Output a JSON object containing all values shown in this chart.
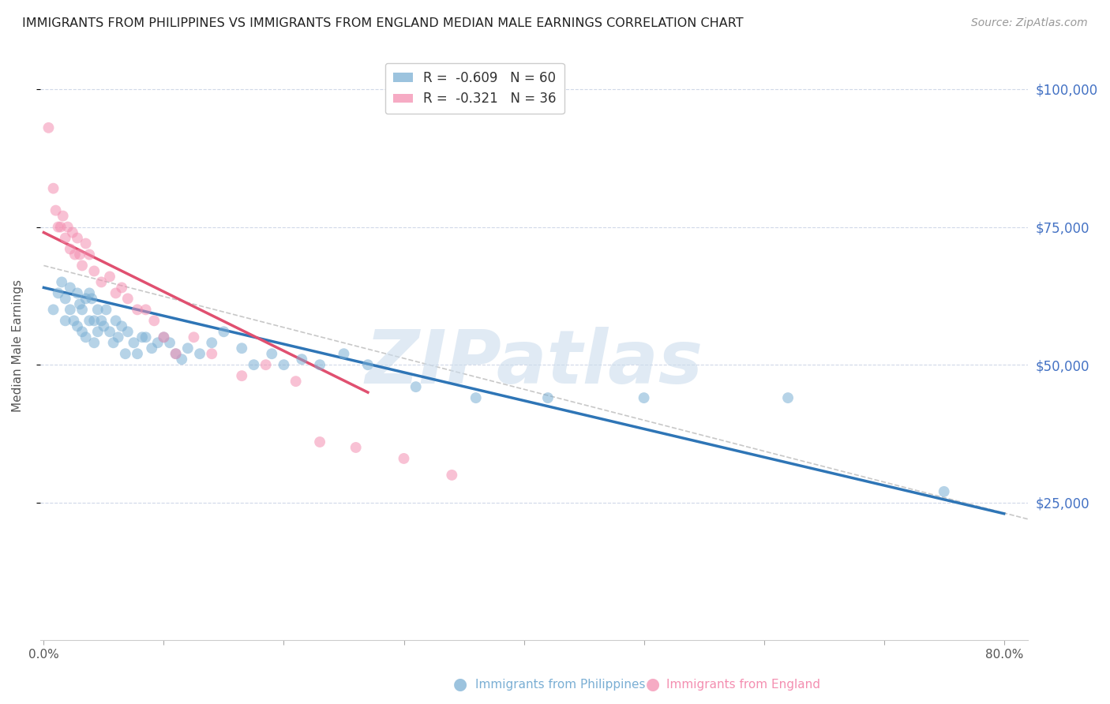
{
  "title": "IMMIGRANTS FROM PHILIPPINES VS IMMIGRANTS FROM ENGLAND MEDIAN MALE EARNINGS CORRELATION CHART",
  "source": "Source: ZipAtlas.com",
  "ylabel": "Median Male Earnings",
  "y_ticks": [
    25000,
    50000,
    75000,
    100000
  ],
  "y_tick_labels": [
    "$25,000",
    "$50,000",
    "$75,000",
    "$100,000"
  ],
  "ylim": [
    0,
    107000
  ],
  "xlim": [
    -0.003,
    0.82
  ],
  "watermark": "ZIPatlas",
  "legend_line1": "R =  -0.609   N = 60",
  "legend_line2": "R =  -0.321   N = 36",
  "blue_scatter_x": [
    0.008,
    0.012,
    0.015,
    0.018,
    0.018,
    0.022,
    0.022,
    0.025,
    0.028,
    0.028,
    0.03,
    0.032,
    0.032,
    0.035,
    0.035,
    0.038,
    0.038,
    0.04,
    0.042,
    0.042,
    0.045,
    0.045,
    0.048,
    0.05,
    0.052,
    0.055,
    0.058,
    0.06,
    0.062,
    0.065,
    0.068,
    0.07,
    0.075,
    0.078,
    0.082,
    0.085,
    0.09,
    0.095,
    0.1,
    0.105,
    0.11,
    0.115,
    0.12,
    0.13,
    0.14,
    0.15,
    0.165,
    0.175,
    0.19,
    0.2,
    0.215,
    0.23,
    0.25,
    0.27,
    0.31,
    0.36,
    0.42,
    0.5,
    0.62,
    0.75
  ],
  "blue_scatter_y": [
    60000,
    63000,
    65000,
    62000,
    58000,
    64000,
    60000,
    58000,
    63000,
    57000,
    61000,
    60000,
    56000,
    62000,
    55000,
    63000,
    58000,
    62000,
    58000,
    54000,
    60000,
    56000,
    58000,
    57000,
    60000,
    56000,
    54000,
    58000,
    55000,
    57000,
    52000,
    56000,
    54000,
    52000,
    55000,
    55000,
    53000,
    54000,
    55000,
    54000,
    52000,
    51000,
    53000,
    52000,
    54000,
    56000,
    53000,
    50000,
    52000,
    50000,
    51000,
    50000,
    52000,
    50000,
    46000,
    44000,
    44000,
    44000,
    44000,
    27000
  ],
  "pink_scatter_x": [
    0.004,
    0.008,
    0.01,
    0.012,
    0.014,
    0.016,
    0.018,
    0.02,
    0.022,
    0.024,
    0.026,
    0.028,
    0.03,
    0.032,
    0.035,
    0.038,
    0.042,
    0.048,
    0.055,
    0.06,
    0.065,
    0.07,
    0.078,
    0.085,
    0.092,
    0.1,
    0.11,
    0.125,
    0.14,
    0.165,
    0.185,
    0.21,
    0.23,
    0.26,
    0.3,
    0.34
  ],
  "pink_scatter_y": [
    93000,
    82000,
    78000,
    75000,
    75000,
    77000,
    73000,
    75000,
    71000,
    74000,
    70000,
    73000,
    70000,
    68000,
    72000,
    70000,
    67000,
    65000,
    66000,
    63000,
    64000,
    62000,
    60000,
    60000,
    58000,
    55000,
    52000,
    55000,
    52000,
    48000,
    50000,
    47000,
    36000,
    35000,
    33000,
    30000
  ],
  "blue_line_x": [
    0.0,
    0.8
  ],
  "blue_line_y": [
    64000,
    23000
  ],
  "pink_line_x": [
    0.0,
    0.27
  ],
  "pink_line_y": [
    74000,
    45000
  ],
  "dashed_line_x": [
    0.0,
    0.82
  ],
  "dashed_line_y": [
    68000,
    22000
  ],
  "scatter_alpha": 0.55,
  "scatter_size": 100,
  "blue_color": "#7bafd4",
  "pink_color": "#f48fb1",
  "blue_line_color": "#2e75b6",
  "pink_line_color": "#e05070",
  "dashed_line_color": "#c8c8c8",
  "grid_color": "#d0d8e8",
  "right_axis_color": "#4472c4",
  "title_fontsize": 11.5,
  "source_fontsize": 10,
  "axis_label_fontsize": 11,
  "tick_label_fontsize": 11
}
